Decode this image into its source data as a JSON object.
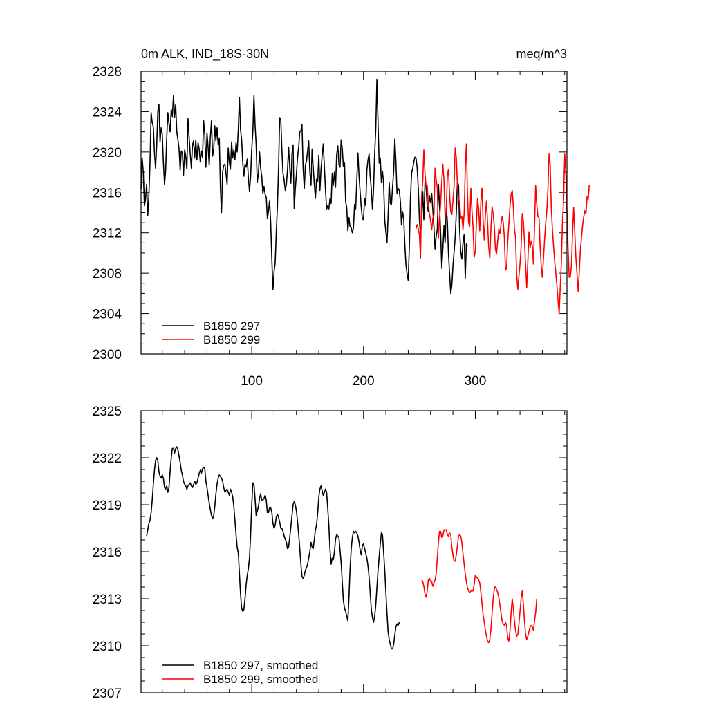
{
  "chart_data": [
    {
      "type": "line",
      "title_left": "0m ALK, IND_18S-30N",
      "title_right": "meq/m^3",
      "xlim": [
        1,
        382
      ],
      "ylim": [
        2300,
        2328
      ],
      "yticks": [
        2300,
        2304,
        2308,
        2312,
        2316,
        2320,
        2324,
        2328
      ],
      "xticks": [
        100,
        200,
        300
      ],
      "series": [
        {
          "name": "B1850 297",
          "color": "#000000",
          "x_start": 1,
          "values": [
            2316.3,
            2319.4,
            2318.1,
            2314.7,
            2315.3,
            2316.8,
            2313.7,
            2315.6,
            2318.7,
            2323.9,
            2322.9,
            2322.5,
            2320.0,
            2318.4,
            2320.6,
            2324.0,
            2324.7,
            2321.0,
            2322.4,
            2321.8,
            2319.0,
            2316.8,
            2318.2,
            2321.5,
            2323.9,
            2322.8,
            2322.0,
            2324.2,
            2323.5,
            2325.6,
            2323.4,
            2324.7,
            2322.0,
            2321.2,
            2320.3,
            2318.2,
            2320.1,
            2319.9,
            2317.7,
            2320.2,
            2319.6,
            2318.3,
            2323.3,
            2321.5,
            2319.9,
            2318.4,
            2320.7,
            2321.1,
            2319.4,
            2321.2,
            2319.2,
            2320.9,
            2320.3,
            2319.0,
            2320.1,
            2319.5,
            2323.1,
            2321.7,
            2318.5,
            2321.9,
            2320.5,
            2318.7,
            2321.4,
            2323.1,
            2319.6,
            2320.3,
            2322.6,
            2321.1,
            2322.4,
            2320.7,
            2321.4,
            2316.4,
            2314.0,
            2318.0,
            2318.7,
            2318.8,
            2317.9,
            2316.8,
            2320.4,
            2319.0,
            2318.3,
            2321.0,
            2319.4,
            2320.2,
            2319.2,
            2320.9,
            2320.0,
            2322.3,
            2325.4,
            2322.2,
            2321.2,
            2319.0,
            2317.6,
            2318.8,
            2318.5,
            2319.3,
            2317.5,
            2316.1,
            2317.5,
            2320.3,
            2322.0,
            2325.6,
            2322.7,
            2320.7,
            2317.0,
            2317.9,
            2320.0,
            2318.4,
            2317.6,
            2315.9,
            2316.6,
            2315.8,
            2315.5,
            2313.4,
            2314.1,
            2315.2,
            2313.0,
            2309.3,
            2306.4,
            2308.2,
            2309.0,
            2312.1,
            2314.5,
            2318.5,
            2323.4,
            2323.3,
            2320.2,
            2317.9,
            2317.2,
            2316.2,
            2316.8,
            2318.2,
            2320.5,
            2318.5,
            2316.9,
            2319.8,
            2320.7,
            2314.4,
            2316.3,
            2317.8,
            2319.5,
            2320.5,
            2322.0,
            2322.1,
            2322.7,
            2318.4,
            2316.4,
            2318.7,
            2319.1,
            2320.1,
            2321.1,
            2318.1,
            2316.7,
            2320.3,
            2318.5,
            2316.8,
            2315.4,
            2317.3,
            2317.1,
            2319.7,
            2316.2,
            2318.3,
            2319.6,
            2320.8,
            2318.5,
            2316.2,
            2314.3,
            2314.7,
            2314.3,
            2315.4,
            2314.9,
            2317.9,
            2316.7,
            2318.0,
            2316.5,
            2319.7,
            2320.6,
            2318.8,
            2318.5,
            2321.2,
            2320.4,
            2318.6,
            2318.9,
            2315.1,
            2314.5,
            2312.2,
            2313.5,
            2312.6,
            2312.5,
            2312.0,
            2312.5,
            2314.8,
            2314.3,
            2317.1,
            2319.9,
            2317.6,
            2316.0,
            2314.5,
            2313.4,
            2313.3,
            2315.4,
            2314.7,
            2318.2,
            2319.2,
            2319.8,
            2317.6,
            2316.3,
            2314.3,
            2316.3,
            2319.9,
            2322.3,
            2327.2,
            2322.8,
            2318.9,
            2319.4,
            2317.0,
            2318.1,
            2316.9,
            2313.2,
            2312.1,
            2311.0,
            2313.6,
            2317.0,
            2314.9,
            2314.8,
            2316.6,
            2318.1,
            2321.3,
            2319.1,
            2315.9,
            2316.4,
            2316.2,
            2315.1,
            2312.8,
            2314.1,
            2313.4,
            2310.7,
            2308.8,
            2307.9,
            2307.3,
            2310.5,
            2315.4,
            2317.9,
            2318.4,
            2319.0,
            2319.5,
            2319.4,
            2318.5,
            2316.4,
            2313.3,
            2311.8,
            2313.6,
            2316.1,
            2313.3,
            2317.0,
            2316.6,
            2314.6,
            2314.1,
            2315.7,
            2315.0,
            2315.9,
            2314.3,
            2312.6,
            2310.4,
            2311.6,
            2312.4,
            2316.8,
            2314.8,
            2311.9,
            2308.5,
            2310.4,
            2312.7,
            2311.0,
            2314.4,
            2313.2,
            2310.0,
            2308.0,
            2306.0,
            2306.8,
            2308.7,
            2310.1,
            2311.5,
            2313.9,
            2317.1,
            2316.7,
            2312.2,
            2310.1,
            2309.4,
            2311.0,
            2311.8,
            2307.5,
            2310.9,
            2310.7
          ]
        },
        {
          "name": "B1850 299",
          "color": "#ff0000",
          "x_start": 247,
          "values": [
            2312.4,
            2312.8,
            2312.4,
            2311.8,
            2309.5,
            2315.6,
            2317.1,
            2320.2,
            2317.8,
            2316.6,
            2316.7,
            2314.8,
            2313.9,
            2313.2,
            2312.3,
            2313.4,
            2313.8,
            2318.4,
            2317.3,
            2316.4,
            2311.5,
            2313.4,
            2314.9,
            2317.1,
            2318.8,
            2317.1,
            2313.4,
            2314.2,
            2317.6,
            2318.3,
            2315.8,
            2314.1,
            2313.8,
            2315.2,
            2316.6,
            2320.4,
            2319.5,
            2316.6,
            2315.5,
            2315.0,
            2313.4,
            2313.6,
            2312.3,
            2313.9,
            2318.3,
            2320.8,
            2315.8,
            2313.0,
            2312.6,
            2316.4,
            2314.2,
            2312.5,
            2309.6,
            2310.1,
            2312.9,
            2315.4,
            2314.4,
            2312.2,
            2315.1,
            2316.4,
            2313.2,
            2311.3,
            2313.8,
            2315.2,
            2312.9,
            2310.6,
            2309.5,
            2312.5,
            2314.6,
            2313.8,
            2312.7,
            2310.4,
            2309.9,
            2311.2,
            2312.4,
            2311.9,
            2312.8,
            2313.6,
            2313.1,
            2311.5,
            2308.3,
            2308.5,
            2311.1,
            2312.8,
            2314.5,
            2315.8,
            2316.2,
            2314.7,
            2312.4,
            2311.6,
            2307.9,
            2306.4,
            2307.7,
            2308.9,
            2310.6,
            2313.9,
            2313.2,
            2311.2,
            2308.7,
            2306.6,
            2309.1,
            2312.1,
            2310.5,
            2311.2,
            2310.7,
            2308.9,
            2312.7,
            2316.7,
            2314.8,
            2313.6,
            2313.5,
            2310.6,
            2308.7,
            2307.6,
            2309.4,
            2311.4,
            2313.0,
            2314.2,
            2316.3,
            2319.8,
            2318.8,
            2314.4,
            2312.3,
            2310.7,
            2309.2,
            2308.1,
            2306.8,
            2305.3,
            2304.0,
            2306.6,
            2309.0,
            2313.1,
            2315.2,
            2319.8,
            2318.0,
            2314.1,
            2310.5,
            2307.6,
            2307.7,
            2308.7,
            2312.0,
            2314.5,
            2312.1,
            2309.6,
            2307.9,
            2306.2,
            2308.1,
            2310.3,
            2311.5,
            2312.7,
            2313.6,
            2314.2,
            2313.9,
            2315.6,
            2315.3,
            2316.7
          ]
        }
      ],
      "legend": [
        "B1850 297",
        "B1850 299"
      ],
      "legend_position": "bottom-left"
    },
    {
      "type": "line",
      "xlim": [
        1,
        382
      ],
      "ylim": [
        2307,
        2325
      ],
      "yticks": [
        2307,
        2310,
        2313,
        2316,
        2319,
        2322,
        2325
      ],
      "series": [
        {
          "name": "B1850 297, smoothed",
          "color": "#000000",
          "x_start": 6,
          "values": [
            2317.0,
            2317.4,
            2317.8,
            2318.0,
            2318.5,
            2319.3,
            2320.3,
            2321.2,
            2321.8,
            2322.0,
            2321.8,
            2321.1,
            2320.8,
            2320.7,
            2320.9,
            2320.7,
            2320.1,
            2320.0,
            2320.2,
            2319.8,
            2320.1,
            2321.1,
            2322.0,
            2322.6,
            2322.6,
            2322.3,
            2322.6,
            2322.7,
            2322.5,
            2322.1,
            2321.7,
            2321.2,
            2320.9,
            2320.5,
            2320.3,
            2320.2,
            2320.0,
            2320.2,
            2320.3,
            2320.4,
            2320.2,
            2320.1,
            2320.3,
            2320.5,
            2320.3,
            2320.4,
            2320.7,
            2321.0,
            2321.2,
            2321.0,
            2321.3,
            2321.4,
            2321.3,
            2320.5,
            2320.1,
            2319.6,
            2319.1,
            2318.7,
            2318.3,
            2318.1,
            2318.3,
            2318.9,
            2319.7,
            2320.3,
            2320.7,
            2320.9,
            2320.8,
            2320.7,
            2320.5,
            2320.1,
            2319.8,
            2319.9,
            2320.0,
            2319.8,
            2319.6,
            2320.0,
            2319.8,
            2319.5,
            2318.9,
            2318.0,
            2317.1,
            2316.3,
            2315.9,
            2314.6,
            2313.3,
            2312.4,
            2312.2,
            2312.3,
            2313.0,
            2313.9,
            2314.5,
            2314.9,
            2315.6,
            2317.0,
            2319.0,
            2320.4,
            2320.3,
            2319.4,
            2318.3,
            2318.6,
            2318.9,
            2319.4,
            2319.7,
            2319.3,
            2319.3,
            2319.4,
            2319.6,
            2319.3,
            2318.5,
            2318.5,
            2318.8,
            2318.8,
            2318.5,
            2317.8,
            2317.5,
            2317.7,
            2318.2,
            2318.4,
            2318.2,
            2317.9,
            2317.5,
            2317.5,
            2317.3,
            2317.0,
            2316.8,
            2316.6,
            2316.2,
            2316.3,
            2316.9,
            2317.6,
            2318.3,
            2319.0,
            2319.2,
            2319.0,
            2318.6,
            2317.9,
            2317.1,
            2316.2,
            2315.2,
            2314.4,
            2314.3,
            2314.5,
            2314.8,
            2315.0,
            2315.2,
            2315.6,
            2316.0,
            2316.6,
            2316.3,
            2316.2,
            2316.8,
            2317.4,
            2317.7,
            2318.5,
            2319.5,
            2320.0,
            2320.2,
            2319.9,
            2319.6,
            2319.8,
            2320.0,
            2319.8,
            2318.8,
            2317.7,
            2316.2,
            2315.2,
            2315.6,
            2315.5,
            2316.0,
            2316.8,
            2317.1,
            2317.0,
            2316.9,
            2316.1,
            2315.3,
            2314.1,
            2312.9,
            2312.4,
            2312.2,
            2311.9,
            2311.6,
            2313.1,
            2314.9,
            2316.2,
            2316.9,
            2317.3,
            2317.2,
            2317.3,
            2317.2,
            2317.0,
            2316.6,
            2316.1,
            2315.8,
            2316.4,
            2316.5,
            2316.2,
            2315.9,
            2315.6,
            2315.1,
            2314.4,
            2313.4,
            2312.3,
            2311.8,
            2311.5,
            2311.9,
            2312.6,
            2313.7,
            2314.8,
            2315.7,
            2316.5,
            2317.2,
            2317.1,
            2316.0,
            2314.8,
            2313.4,
            2312.1,
            2310.9,
            2310.4,
            2310.1,
            2309.8,
            2309.8,
            2310.1,
            2310.7,
            2311.2,
            2311.4,
            2311.3,
            2311.5
          ]
        },
        {
          "name": "B1850 299, smoothed",
          "color": "#ff0000",
          "x_start": 252,
          "values": [
            2314.2,
            2314.1,
            2313.8,
            2313.3,
            2313.1,
            2313.5,
            2314.2,
            2314.3,
            2314.1,
            2314.1,
            2313.8,
            2314.0,
            2314.2,
            2314.6,
            2315.6,
            2316.6,
            2317.3,
            2317.3,
            2316.9,
            2317.0,
            2317.4,
            2317.4,
            2317.4,
            2317.1,
            2317.0,
            2317.2,
            2317.1,
            2316.3,
            2315.8,
            2315.4,
            2315.4,
            2315.8,
            2316.4,
            2317.0,
            2317.1,
            2317.0,
            2316.6,
            2315.9,
            2315.2,
            2314.6,
            2314.1,
            2313.7,
            2313.5,
            2313.4,
            2313.5,
            2313.5,
            2313.5,
            2313.9,
            2314.5,
            2314.4,
            2314.3,
            2314.2,
            2314.0,
            2313.4,
            2312.7,
            2312.0,
            2311.5,
            2311.0,
            2310.6,
            2310.3,
            2310.2,
            2310.4,
            2311.1,
            2312.1,
            2313.0,
            2313.6,
            2313.8,
            2313.6,
            2313.4,
            2313.1,
            2312.6,
            2312.1,
            2311.6,
            2311.4,
            2311.3,
            2311.5,
            2311.3,
            2310.5,
            2310.3,
            2310.9,
            2312.1,
            2313.0,
            2312.4,
            2311.6,
            2311.0,
            2310.6,
            2310.7,
            2311.4,
            2312.2,
            2313.0,
            2313.5,
            2312.7,
            2311.6,
            2310.7,
            2310.4,
            2310.6,
            2310.9,
            2311.2,
            2311.3,
            2311.2,
            2311.0,
            2311.6,
            2312.1,
            2313.0
          ]
        }
      ],
      "legend": [
        "B1850 297, smoothed",
        "B1850 299, smoothed"
      ],
      "legend_position": "bottom-left"
    }
  ]
}
